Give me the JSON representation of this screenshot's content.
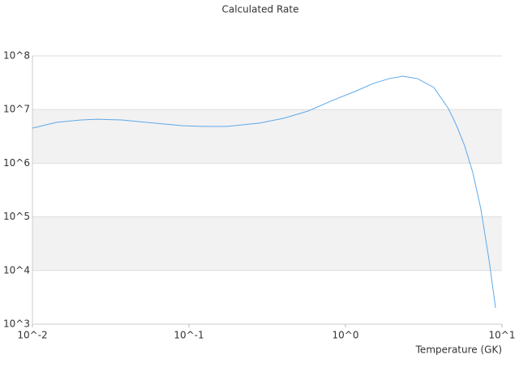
{
  "chart_data": {
    "type": "line",
    "title": "Calculated Rate",
    "x_label": "Temperature (GK)",
    "xscale": "log",
    "yscale": "log",
    "grid": true,
    "bands": true,
    "xlim": [
      0.01,
      10
    ],
    "ylim": [
      1000,
      100000000
    ],
    "xticks": [
      {
        "value": 0.01,
        "label": "10^-2"
      },
      {
        "value": 0.1,
        "label": "10^-1"
      },
      {
        "value": 1,
        "label": "10^0"
      },
      {
        "value": 10,
        "label": "10^1"
      }
    ],
    "yticks": [
      {
        "value": 1000,
        "label": "10^3"
      },
      {
        "value": 10000,
        "label": "10^4"
      },
      {
        "value": 100000,
        "label": "10^5"
      },
      {
        "value": 1000000,
        "label": "10^6"
      },
      {
        "value": 10000000,
        "label": "10^7"
      },
      {
        "value": 100000000,
        "label": "10^8"
      }
    ],
    "x": [
      0.01,
      0.0143,
      0.0205,
      0.026,
      0.037,
      0.053,
      0.091,
      0.122,
      0.175,
      0.282,
      0.404,
      0.578,
      0.826,
      1.18,
      1.5,
      1.9,
      2.33,
      2.89,
      3.67,
      4.55,
      5.13,
      5.78,
      6.51,
      7.33,
      8.26,
      9.1
    ],
    "series": [
      {
        "color": "#5ea8e8",
        "values": [
          4500000,
          5800000,
          6400000,
          6600000,
          6400000,
          5800000,
          5000000,
          4850000,
          4850000,
          5600000,
          6900000,
          9400000,
          14800000,
          22400000,
          30600000,
          37700000,
          41900000,
          37700000,
          25800000,
          10400000,
          5000000,
          2100000,
          670000,
          140000,
          16000,
          2000
        ]
      }
    ]
  }
}
